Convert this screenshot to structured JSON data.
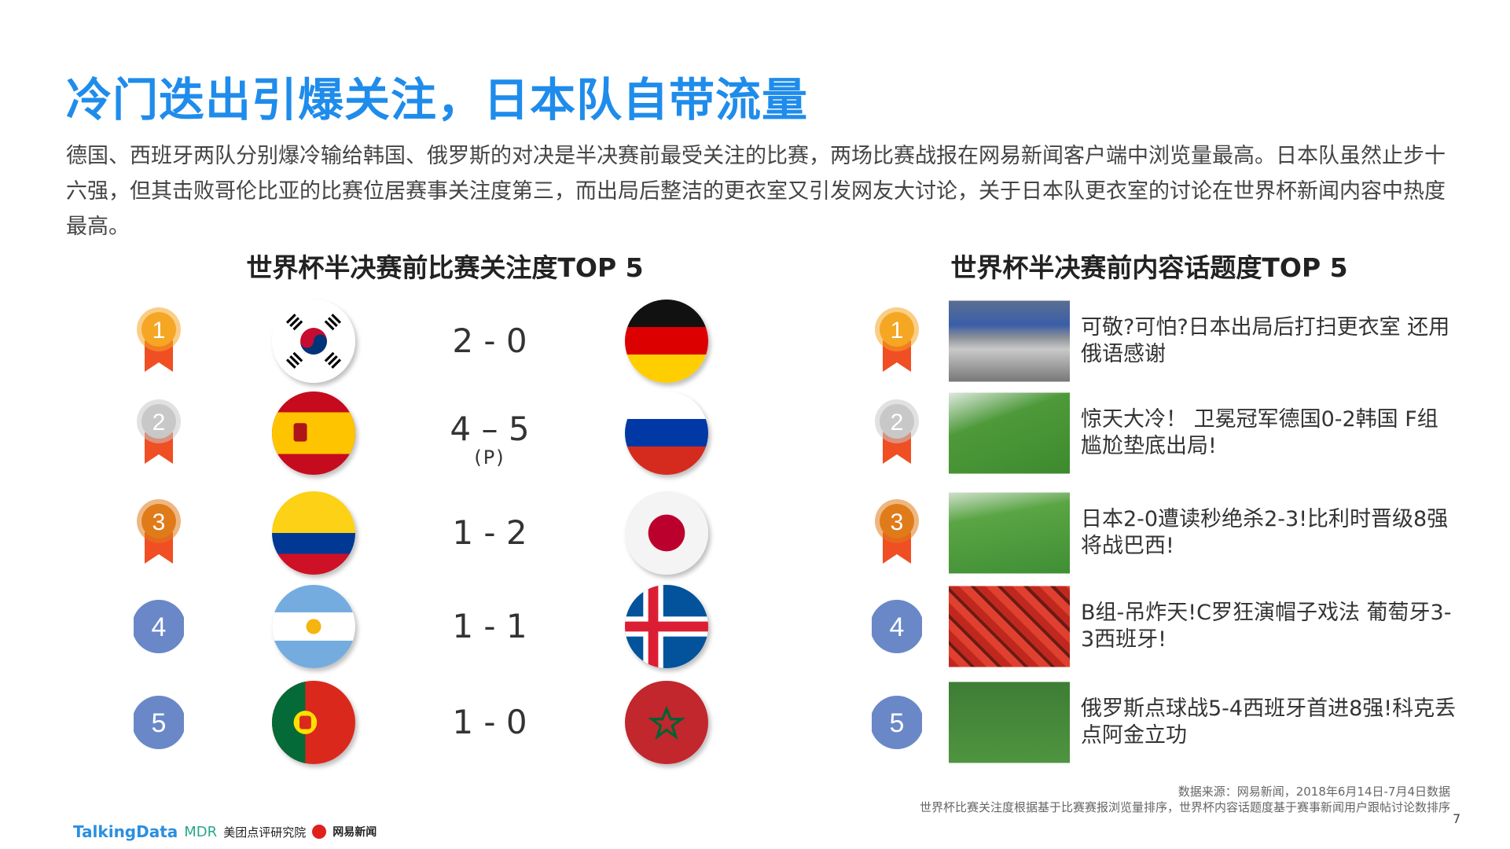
{
  "title": "冷门迭出引爆关注，日本队自带流量",
  "description": "德国、西班牙两队分别爆冷输给韩国、俄罗斯的对决是半决赛前最受关注的比赛，两场比赛战报在网易新闻客户端中浏览量最高。日本队虽然止步十六强，但其击败哥伦比亚的比赛位居赛事关注度第三，而出局后整洁的更衣室又引发网友大讨论，关于日本队更衣室的讨论在世界杯新闻内容中热度最高。",
  "left_section": {
    "heading": "世界杯半决赛前比赛关注度TOP 5",
    "matches": [
      {
        "rank": "1",
        "team_a": "Korea",
        "team_b": "Germany",
        "score": "2 - 0",
        "note": ""
      },
      {
        "rank": "2",
        "team_a": "Spain",
        "team_b": "Russia",
        "score": "4 – 5",
        "note": "(P)"
      },
      {
        "rank": "3",
        "team_a": "Colombia",
        "team_b": "Japan",
        "score": "1 - 2",
        "note": ""
      },
      {
        "rank": "4",
        "team_a": "Argentina",
        "team_b": "Iceland",
        "score": "1 - 1",
        "note": ""
      },
      {
        "rank": "5",
        "team_a": "Portugal",
        "team_b": "Morocco",
        "score": "1 - 0",
        "note": ""
      }
    ]
  },
  "right_section": {
    "heading": "世界杯半决赛前内容话题度TOP 5",
    "topics": [
      {
        "rank": "1",
        "text": "可敬?可怕?日本出局后打扫更衣室 还用俄语感谢"
      },
      {
        "rank": "2",
        "text": "惊天大冷！ 卫冕冠军德国0-2韩国 F组尴尬垫底出局!"
      },
      {
        "rank": "3",
        "text": "日本2-0遭读秒绝杀2-3!比利时晋级8强将战巴西!"
      },
      {
        "rank": "4",
        "text": "B组-吊炸天!C罗狂演帽子戏法 葡萄牙3-3西班牙!"
      },
      {
        "rank": "5",
        "text": "俄罗斯点球战5-4西班牙首进8强!科克丢点阿金立功"
      }
    ]
  },
  "footer": {
    "source": "数据来源：网易新闻，2018年6月14日-7月4日数据",
    "method": "世界杯比赛关注度根据基于比赛赛报浏览量排序，世界杯内容话题度基于赛事新闻用户跟帖讨论数排序",
    "page": "7",
    "logos": [
      "TalkingData",
      "MDR",
      "美团点评研究院",
      "网易新闻"
    ]
  },
  "colors": {
    "title": "#1f8ceb",
    "gold": "#f5a623",
    "silver": "#c8c8c8",
    "bronze": "#e07b1a",
    "ribbon": "#f04e23",
    "blue_badge": "#6a88c8"
  }
}
